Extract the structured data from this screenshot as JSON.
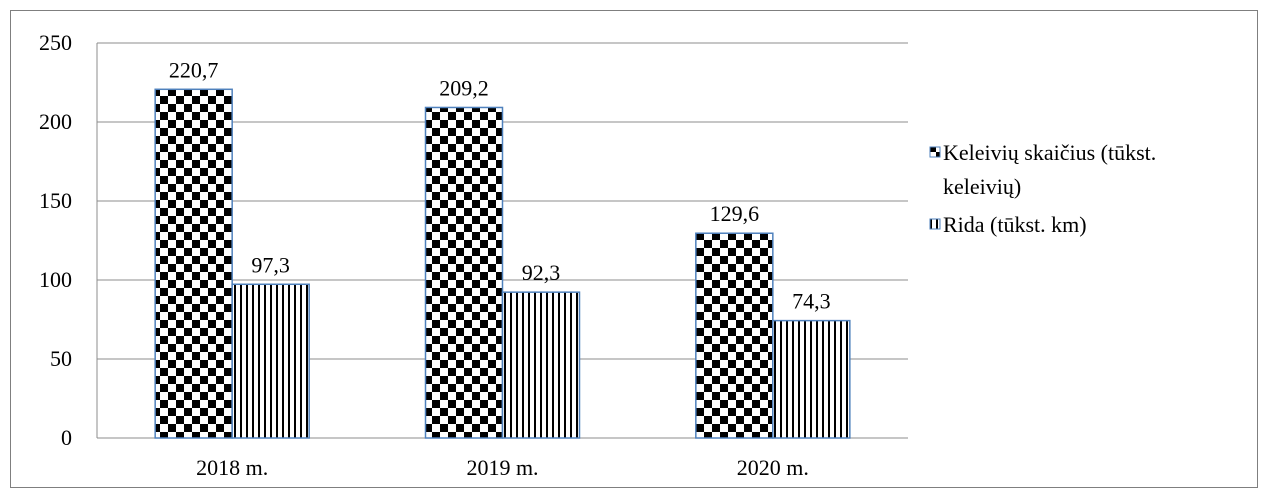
{
  "chart_data": {
    "type": "bar",
    "categories": [
      "2018 m.",
      "2019 m.",
      "2020 m."
    ],
    "series": [
      {
        "name": "Keleivių skaičius (tūkst. keleivių)",
        "name_lines": [
          "Keleivių skaičius (tūkst.",
          "keleivių)"
        ],
        "values": [
          220.7,
          209.2,
          129.6
        ],
        "labels": [
          "220,7",
          "209,2",
          "129,6"
        ],
        "pattern": "checkerboard"
      },
      {
        "name": "Rida (tūkst. km)",
        "name_lines": [
          "Rida (tūkst. km)"
        ],
        "values": [
          97.3,
          92.3,
          74.3
        ],
        "labels": [
          "97,3",
          "92,3",
          "74,3"
        ],
        "pattern": "vertical-stripes"
      }
    ],
    "ylim": [
      0,
      250
    ],
    "yticks": [
      0,
      50,
      100,
      150,
      200,
      250
    ],
    "grid": true,
    "legend": "right",
    "title": "",
    "xlabel": "",
    "ylabel": ""
  }
}
